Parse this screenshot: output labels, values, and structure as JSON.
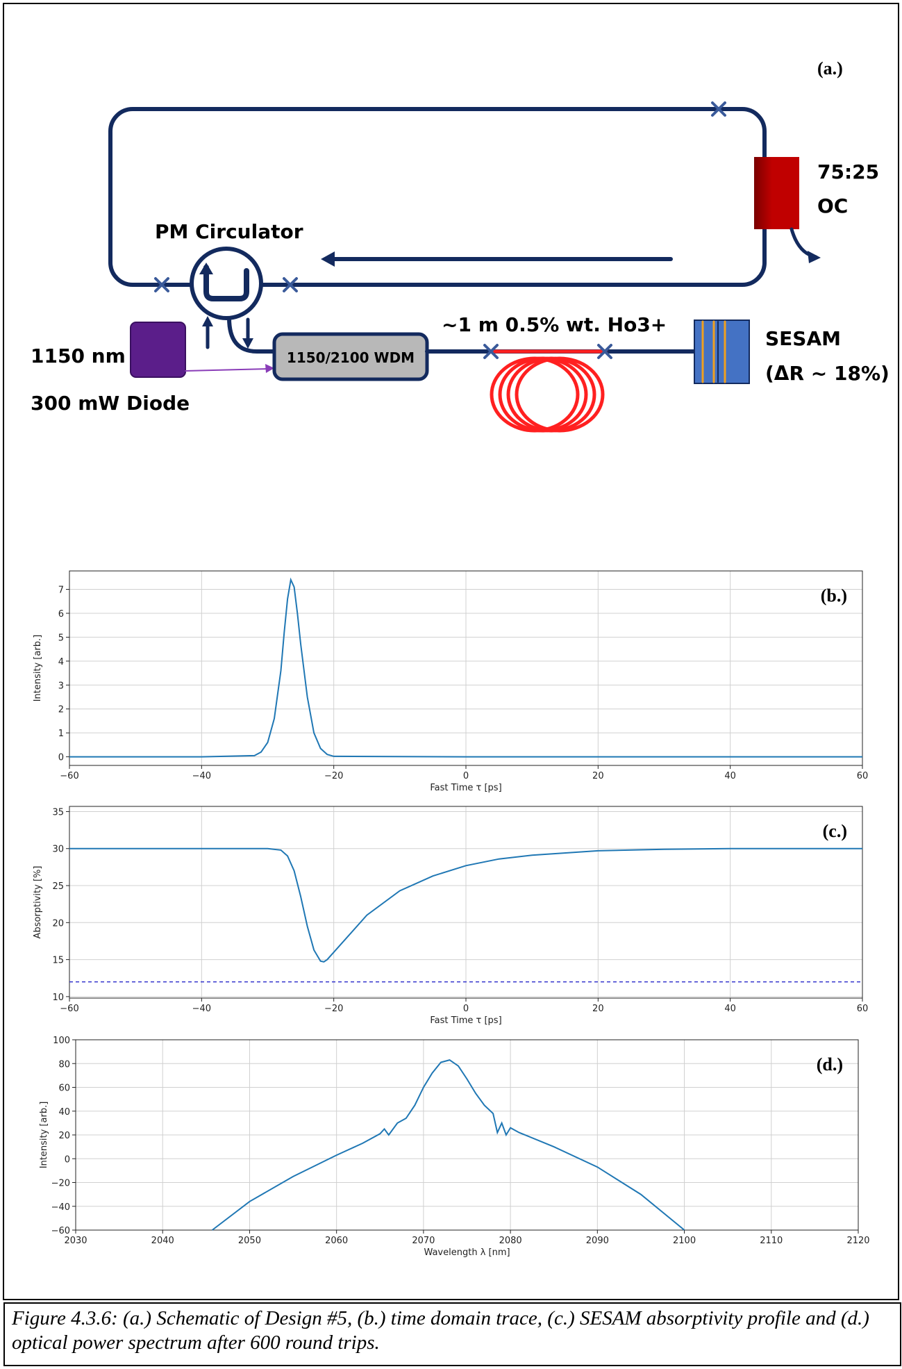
{
  "diagram": {
    "panel_label": "(a.)",
    "coupler_ratio": "75:25",
    "coupler_label": "OC",
    "circulator_label": "PM Circulator",
    "pump_wavelength": "1150 nm",
    "pump_label": "300 mW Diode",
    "wdm_label": "1150/2100 WDM",
    "fiber_label": "~1 m 0.5% wt. Ho3+",
    "sesam_label": "SESAM",
    "sesam_modulation": "(ΔR ~ 18%)"
  },
  "chart_data": [
    {
      "type": "line",
      "annotation": "(b.)",
      "x_label": "Fast Time τ [ps]",
      "y_label": "Intensity [arb.]",
      "x": [
        -60,
        -40,
        -32,
        -31,
        -30,
        -29,
        -28,
        -27.5,
        -27,
        -26.5,
        -26,
        -25.5,
        -25,
        -24,
        -23,
        -22,
        -21,
        -20,
        0,
        20,
        40,
        60
      ],
      "series": [
        {
          "color": "#1f77b4",
          "values": [
            0,
            0,
            0.05,
            0.2,
            0.6,
            1.6,
            3.6,
            5.2,
            6.6,
            7.4,
            7.1,
            6.0,
            4.7,
            2.5,
            1.0,
            0.35,
            0.1,
            0.02,
            0,
            0,
            0,
            0
          ]
        }
      ],
      "xlim": [
        -60,
        60
      ],
      "ylim": [
        -0.36,
        7.77
      ],
      "xticks": [
        {
          "value": -60,
          "label": "−60"
        },
        {
          "value": -40,
          "label": "−40"
        },
        {
          "value": -20,
          "label": "−20"
        },
        0,
        20,
        40,
        60
      ],
      "yticks": [
        0,
        1,
        2,
        3,
        4,
        5,
        6,
        7
      ],
      "grid": true
    },
    {
      "type": "line",
      "annotation": "(c.)",
      "x_label": "Fast Time τ [ps]",
      "y_label": "Absorptivity [%]",
      "x": [
        -60,
        -40,
        -30,
        -28,
        -27,
        -26,
        -25,
        -24,
        -23,
        -22,
        -21.5,
        -21,
        -20,
        -15,
        -10,
        -5,
        0,
        5,
        10,
        20,
        30,
        40,
        60
      ],
      "series": [
        {
          "color": "#1f77b4",
          "values": [
            30,
            30,
            30,
            29.8,
            29,
            27,
            23.5,
            19.5,
            16.3,
            14.8,
            14.7,
            15,
            16,
            21,
            24.3,
            26.3,
            27.7,
            28.6,
            29.1,
            29.7,
            29.9,
            30,
            30
          ]
        },
        {
          "color": "#3333cc",
          "dashed": true,
          "x": [
            -60,
            60
          ],
          "values": [
            12,
            12
          ]
        }
      ],
      "xlim": [
        -60,
        60
      ],
      "ylim": [
        9.8,
        35.7
      ],
      "xticks": [
        {
          "value": -60,
          "label": "−60"
        },
        {
          "value": -40,
          "label": "−40"
        },
        {
          "value": -20,
          "label": "−20"
        },
        0,
        20,
        40,
        60
      ],
      "yticks": [
        10,
        15,
        20,
        25,
        30,
        35
      ],
      "grid": true
    },
    {
      "type": "line",
      "annotation": "(d.)",
      "x_label": "Wavelength λ [nm]",
      "y_label": "Intensity [arb.]",
      "x": [
        2045.7,
        2050,
        2055,
        2060,
        2063,
        2065,
        2065.5,
        2066,
        2067,
        2068,
        2069,
        2070,
        2071,
        2072,
        2073,
        2074,
        2075,
        2076,
        2077,
        2078,
        2078.5,
        2079,
        2079.5,
        2080,
        2081,
        2082,
        2085,
        2090,
        2095,
        2100
      ],
      "series": [
        {
          "color": "#1f77b4",
          "values": [
            -60,
            -36,
            -15,
            3,
            13,
            21,
            25,
            20,
            30,
            34,
            45,
            60,
            72,
            81,
            83,
            78,
            67,
            55,
            45,
            38,
            22,
            30,
            20,
            26,
            22,
            19,
            10,
            -7,
            -30,
            -60
          ]
        }
      ],
      "xlim": [
        2030,
        2120
      ],
      "ylim": [
        -60,
        100
      ],
      "xticks": [
        2030,
        2040,
        2050,
        2060,
        2070,
        2080,
        2090,
        2100,
        2110,
        2120
      ],
      "yticks": [
        {
          "value": -60,
          "label": "−60"
        },
        {
          "value": -40,
          "label": "−40"
        },
        {
          "value": -20,
          "label": "−20"
        },
        0,
        20,
        40,
        60,
        80,
        100
      ],
      "grid": true
    }
  ],
  "caption": "Figure 4.3.6: (a.) Schematic of Design #5, (b.) time domain trace, (c.) SESAM absorptivity profile and (d.) optical power spectrum after 600 round trips."
}
